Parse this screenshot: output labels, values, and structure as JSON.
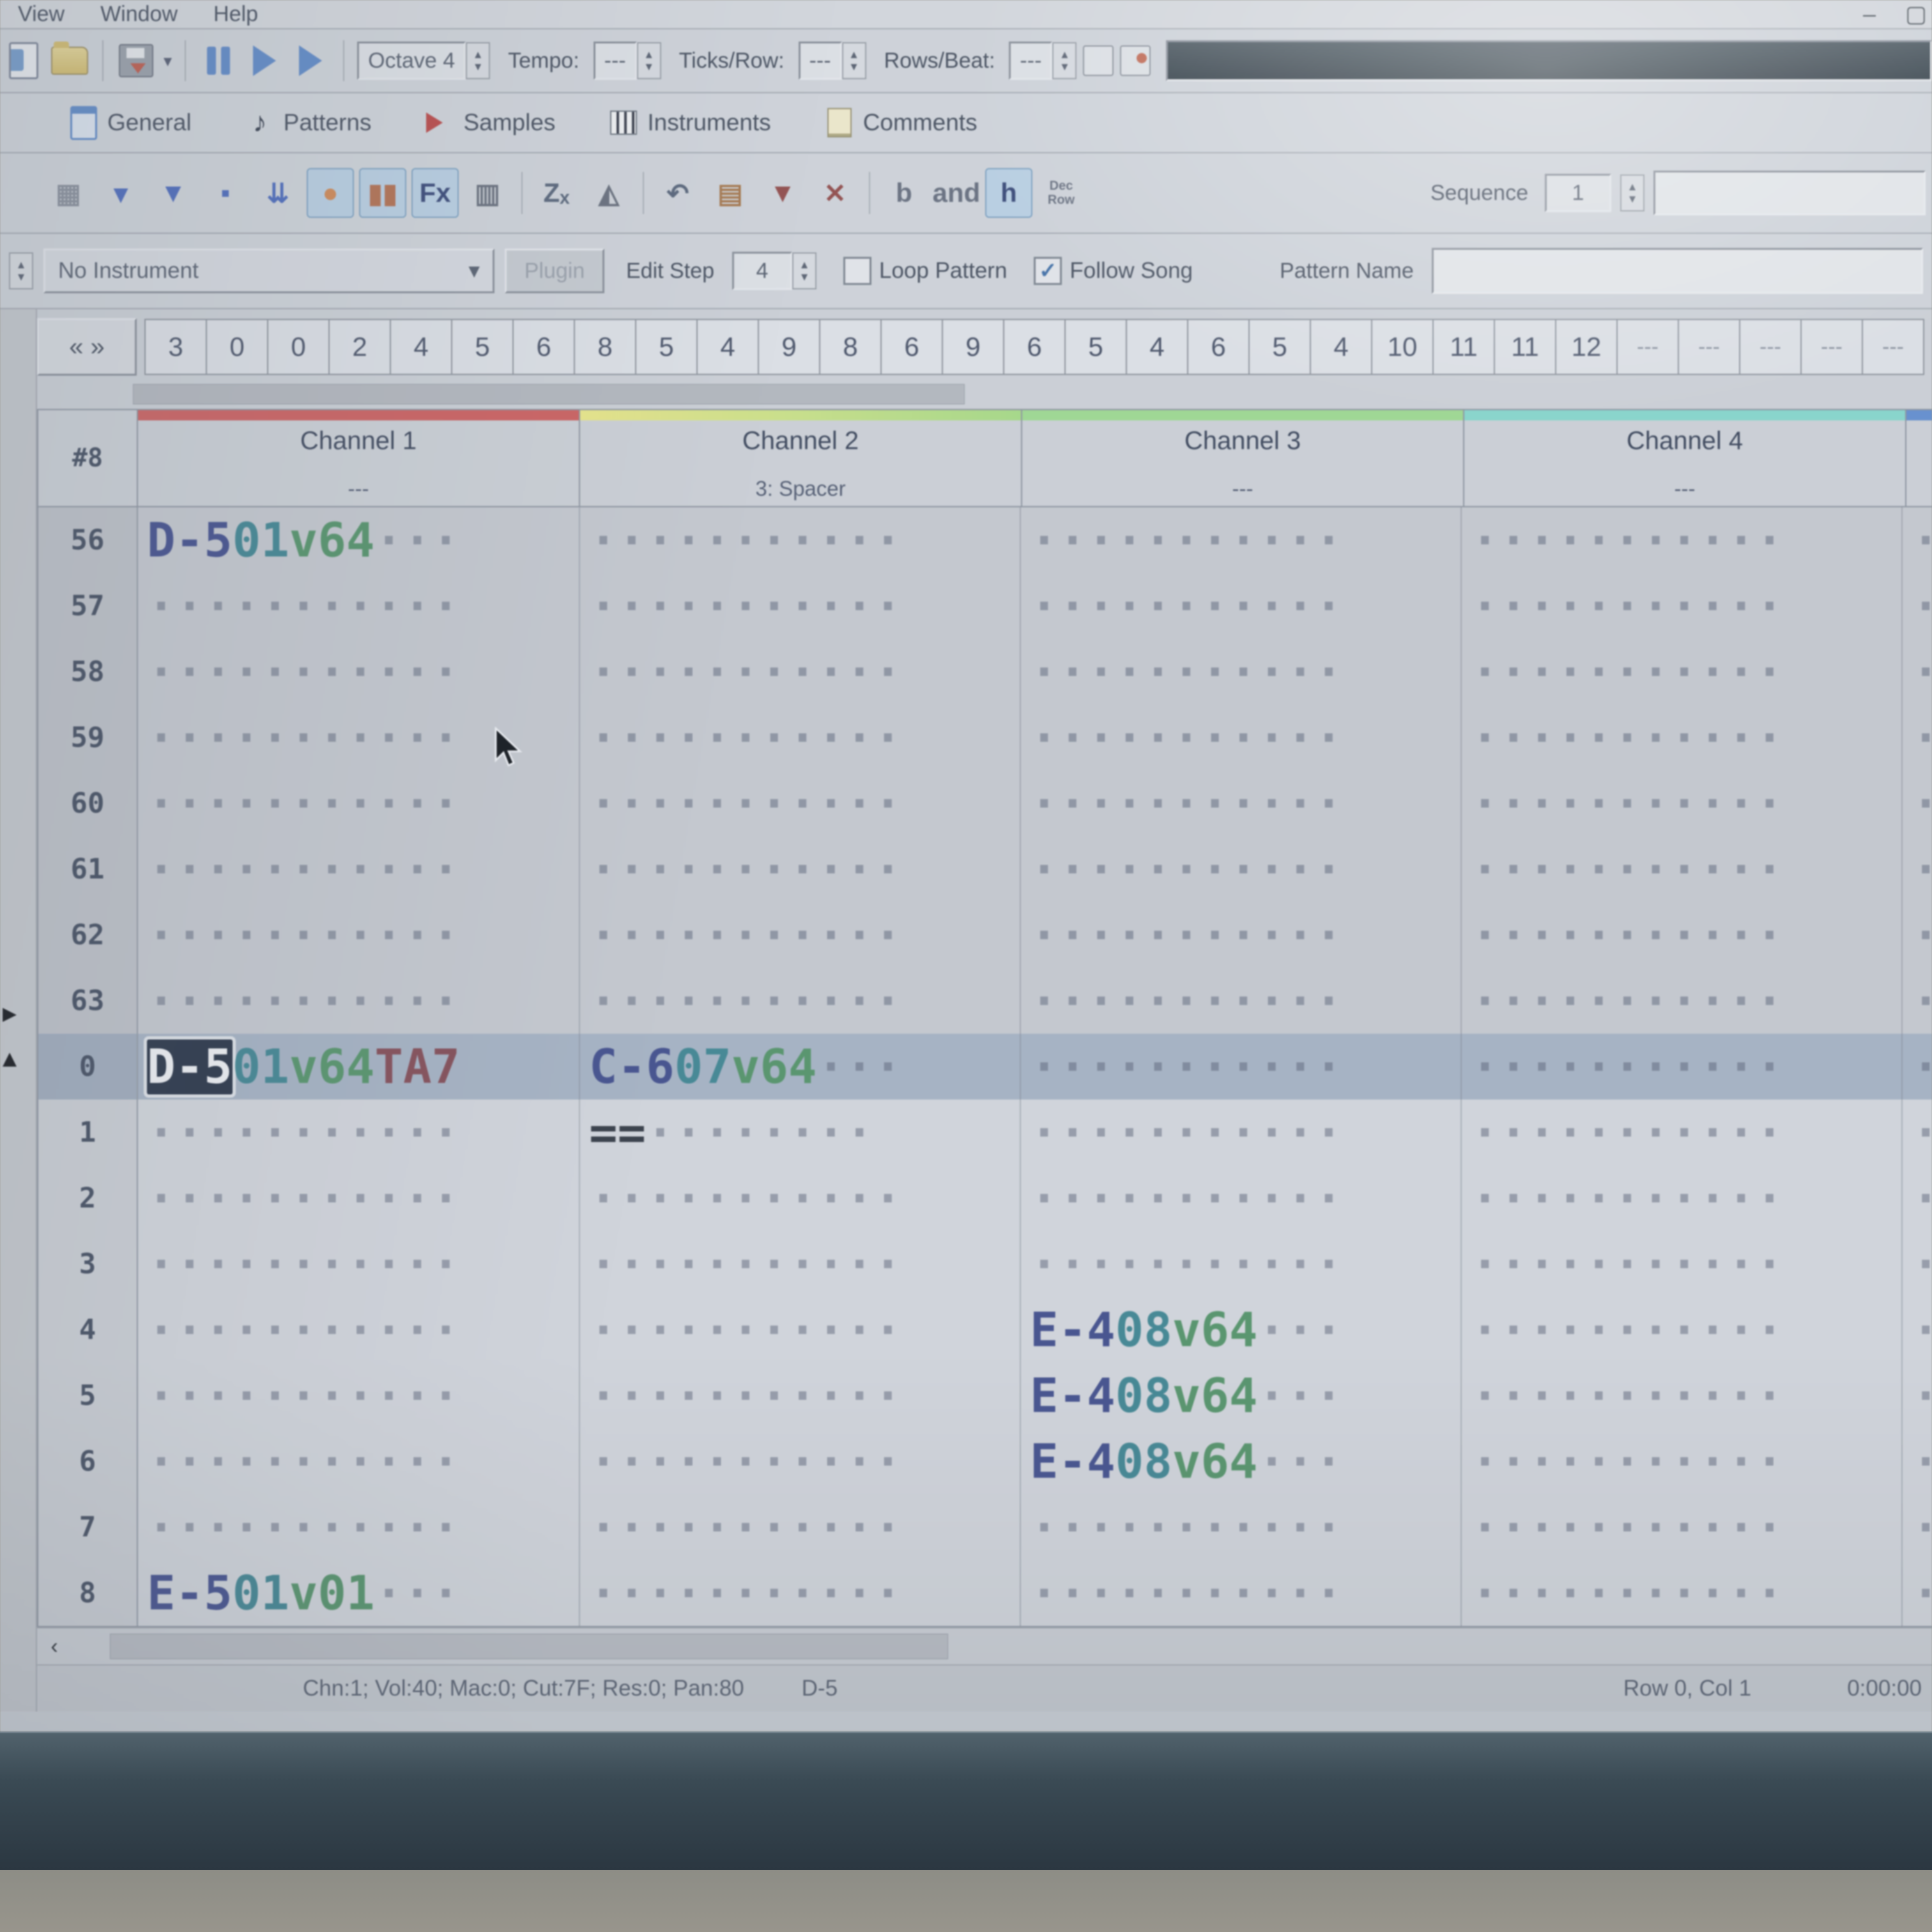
{
  "menu": {
    "items": [
      "View",
      "Window",
      "Help"
    ],
    "minimize": "–",
    "maximize": "▢"
  },
  "toolbar": {
    "octave": "Octave 4",
    "tempo_label": "Tempo:",
    "tempo_value": "---",
    "ticks_label": "Ticks/Row:",
    "ticks_value": "---",
    "rowsbeat_label": "Rows/Beat:",
    "rowsbeat_value": "---"
  },
  "tabs": [
    {
      "label": "General"
    },
    {
      "label": "Patterns"
    },
    {
      "label": "Samples"
    },
    {
      "label": "Instruments"
    },
    {
      "label": "Comments"
    }
  ],
  "pattern_toolbar": {
    "icons": [
      {
        "name": "new-pattern-icon",
        "glyph": "▦",
        "color": "#8a93a2"
      },
      {
        "name": "play-row-icon",
        "glyph": "▾",
        "color": "#4a6fd0"
      },
      {
        "name": "play-pattern-icon",
        "glyph": "▼",
        "color": "#4a6fd0"
      },
      {
        "name": "play-from-cursor-icon",
        "glyph": "▪",
        "color": "#4a6fd0"
      },
      {
        "name": "play-song-icon",
        "glyph": "⇊",
        "color": "#4a6fd0"
      },
      {
        "name": "record-icon",
        "glyph": "●",
        "color": "#dd8a4e",
        "active": true
      },
      {
        "name": "vu-meter-icon",
        "glyph": "▮▮",
        "color": "#c0724e",
        "active": true
      },
      {
        "name": "plugin-names-icon",
        "glyph": "Fx",
        "color": "#3a4e86",
        "active": true
      },
      {
        "name": "channel-manager-icon",
        "glyph": "▥",
        "color": "#6a7384"
      },
      {
        "sep": true
      },
      {
        "name": "zoom-icon",
        "glyph": "Zₓ",
        "color": "#5a6a84"
      },
      {
        "name": "metronome-icon",
        "glyph": "◭",
        "color": "#6a7384"
      },
      {
        "sep": true
      },
      {
        "name": "undo-icon",
        "glyph": "↶",
        "color": "#5a6a84"
      },
      {
        "name": "pattern-properties-icon",
        "glyph": "▤",
        "color": "#b07a4a"
      },
      {
        "name": "expand-pattern-icon",
        "glyph": "▼",
        "color": "#a05050"
      },
      {
        "name": "shrink-pattern-icon",
        "glyph": "✕",
        "color": "#a05050"
      },
      {
        "sep": true
      },
      {
        "name": "overflow-paste-icon",
        "glyph": "b",
        "color": "#6a7488"
      },
      {
        "name": "note-fade-icon",
        "glyph": "and",
        "color": "#6a7488"
      },
      {
        "name": "hex-rows-icon",
        "glyph": "h",
        "color": "#3a4e86",
        "active": true
      },
      {
        "name": "row-col-display-icon",
        "glyph": "Dec/Row",
        "color": "#6a7488"
      }
    ],
    "sequence_label": "Sequence",
    "sequence_value": "1"
  },
  "controls": {
    "instrument": "No Instrument",
    "plugin_button": "Plugin",
    "edit_step_label": "Edit Step",
    "edit_step_value": "4",
    "loop_pattern": "Loop Pattern",
    "loop_pattern_checked": false,
    "follow_song": "Follow Song",
    "follow_song_checked": true,
    "follow_song_check": "✓",
    "pattern_name_label": "Pattern Name",
    "pattern_name_value": ""
  },
  "order": {
    "nav": "« »",
    "cells": [
      "3",
      "0",
      "0",
      "2",
      "4",
      "5",
      "6",
      "8",
      "5",
      "4",
      "9",
      "8",
      "6",
      "9",
      "6",
      "5",
      "4",
      "6",
      "5",
      "4",
      "10",
      "11",
      "11",
      "12",
      "---",
      "---",
      "---",
      "---",
      "---"
    ]
  },
  "pattern": {
    "corner": "#8",
    "channels": [
      {
        "name": "Channel 1",
        "sub": "---",
        "strip": "#e06060"
      },
      {
        "name": "Channel 2",
        "sub": "3: Spacer",
        "strip": "linear-gradient(90deg,#ece97a,#a0de7e)"
      },
      {
        "name": "Channel 3",
        "sub": "---",
        "strip": "#97dd8a"
      },
      {
        "name": "Channel 4",
        "sub": "---",
        "strip": "#7cdbd0"
      },
      {
        "name": "",
        "sub": "",
        "strip": "#5f93e0"
      }
    ],
    "row_numbers": [
      "56",
      "57",
      "58",
      "59",
      "60",
      "61",
      "62",
      "63",
      "0",
      "1",
      "2",
      "3",
      "4",
      "5",
      "6",
      "7",
      "8"
    ],
    "prev_rows_count": 8,
    "current_row": "0",
    "cells": [
      {
        "row": "56",
        "ch": 0,
        "note": "D-5",
        "inst": "01",
        "vol": "v64",
        "fx": ""
      },
      {
        "row": "0",
        "ch": 0,
        "note": "D-5",
        "inst": "01",
        "vol": "v64",
        "fx": "TA7",
        "cursor": true
      },
      {
        "row": "0",
        "ch": 1,
        "note": "C-6",
        "inst": "07",
        "vol": "v64",
        "fx": ""
      },
      {
        "row": "1",
        "ch": 1,
        "note": "==",
        "inst": "",
        "vol": "",
        "fx": ""
      },
      {
        "row": "4",
        "ch": 2,
        "note": "E-4",
        "inst": "08",
        "vol": "v64",
        "fx": ""
      },
      {
        "row": "5",
        "ch": 2,
        "note": "E-4",
        "inst": "08",
        "vol": "v64",
        "fx": ""
      },
      {
        "row": "6",
        "ch": 2,
        "note": "E-4",
        "inst": "08",
        "vol": "v64",
        "fx": ""
      },
      {
        "row": "8",
        "ch": 0,
        "note": "E-5",
        "inst": "01",
        "vol": "v01",
        "fx": ""
      }
    ]
  },
  "status": {
    "left": "Chn:1; Vol:40; Mac:0; Cut:7F; Res:0; Pan:80",
    "note": "D-5",
    "row_col": "Row 0, Col 1",
    "time": "0:00:00"
  }
}
